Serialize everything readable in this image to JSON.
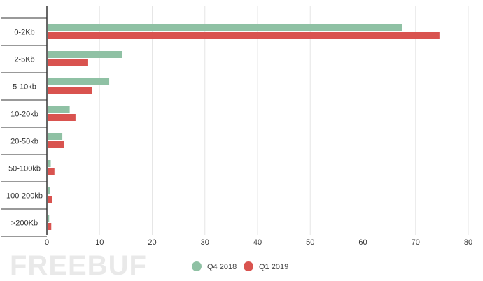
{
  "chart_data": {
    "type": "bar",
    "orientation": "horizontal",
    "categories": [
      "0-2Kb",
      "2-5Kb",
      "5-10kb",
      "10-20kb",
      "20-50kb",
      "50-100kb",
      "100-200kb",
      ">200Kb"
    ],
    "series": [
      {
        "name": "Q4 2018",
        "color": "#8fc1a4",
        "values": [
          67.3,
          14.2,
          11.7,
          4.2,
          2.8,
          0.6,
          0.5,
          0.3
        ]
      },
      {
        "name": "Q1 2019",
        "color": "#d9534f",
        "values": [
          74.4,
          7.7,
          8.5,
          5.3,
          3.1,
          1.3,
          0.9,
          0.7
        ]
      }
    ],
    "xlim": [
      0,
      80
    ],
    "xticks": [
      0,
      10,
      20,
      30,
      40,
      50,
      60,
      70,
      80
    ],
    "grid": true,
    "legend": "bottom-center",
    "title": "",
    "xlabel": "",
    "ylabel": ""
  },
  "watermark": "FREEBUF"
}
